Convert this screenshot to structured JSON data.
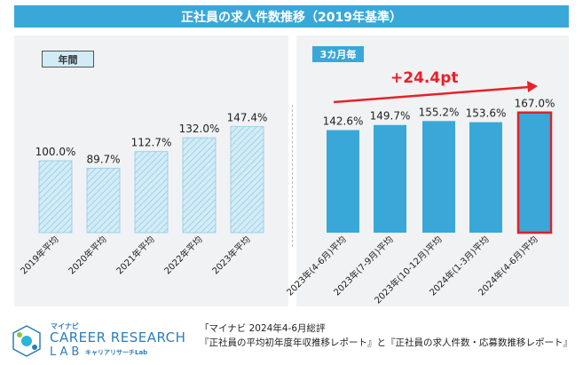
{
  "chart_data": {
    "type": "bar",
    "title": "正社員の求人件数推移（2019年基準）",
    "groups": [
      {
        "label": "年間",
        "categories": [
          "2019年平均",
          "2020年平均",
          "2021年平均",
          "2022年平均",
          "2023年平均"
        ],
        "values": [
          100.0,
          89.7,
          112.7,
          132.0,
          147.4
        ],
        "value_labels": [
          "100.0%",
          "89.7%",
          "112.7%",
          "132.0%",
          "147.4%"
        ]
      },
      {
        "label": "3カ月毎",
        "categories": [
          "2023年(4-6月)平均",
          "2023年(7-9月)平均",
          "2023年(10-12月)平均",
          "2024年(1-3月)平均",
          "2024年(4-6月)平均"
        ],
        "values": [
          142.6,
          149.7,
          155.2,
          153.6,
          167.0
        ],
        "value_labels": [
          "142.6%",
          "149.7%",
          "155.2%",
          "153.6%",
          "167.0%"
        ]
      }
    ],
    "highlight_index": 4,
    "annotation": "+24.4pt",
    "unit": "%",
    "ylim": [
      0,
      180
    ],
    "colors": {
      "annual_fill": "#d4ecf7",
      "annual_stripe": "#8fcbe6",
      "quarter_fill": "#39a8d8",
      "highlight_border": "#d9232e",
      "arrow": "#e8202a"
    }
  },
  "logo": {
    "small": "マイナビ",
    "main": "CAREER RESEARCH",
    "sub1": "LAB",
    "sub2": "キャリアリサーチLab"
  },
  "source": {
    "line1": "「マイナビ 2024年4-6月総評",
    "line2": "『正社員の平均初年度年収推移レポート』と『正社員の求人件数・応募数推移レポート』"
  },
  "colors": {
    "title_bar": "#39a8d8",
    "panel_bg": "#f1f2f3",
    "logo": "#2e7db8"
  }
}
